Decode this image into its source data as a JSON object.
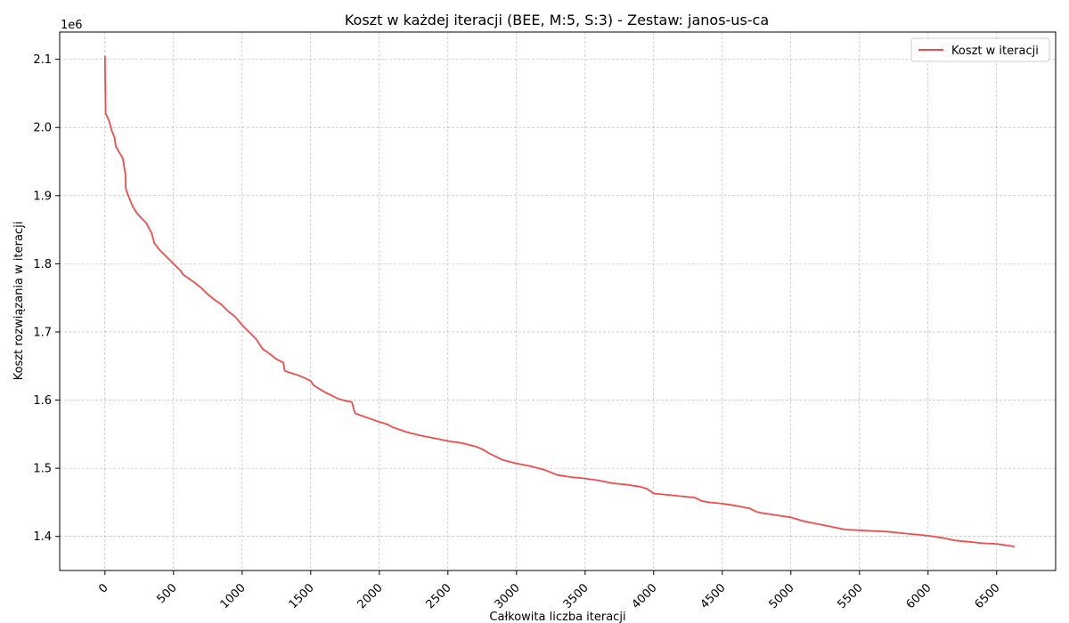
{
  "chart_data": {
    "type": "line",
    "title": "Koszt w każdej iteracji (BEE, M:5, S:3) - Zestaw: janos-us-ca",
    "xlabel": "Całkowita liczba iteracji",
    "ylabel": "Koszt rozwiązania w iteracji",
    "y_offset_label": "1e6",
    "xlim": [
      -330,
      6930
    ],
    "ylim": [
      1.35,
      2.14
    ],
    "xticks": [
      0,
      500,
      1000,
      1500,
      2000,
      2500,
      3000,
      3500,
      4000,
      4500,
      5000,
      5500,
      6000,
      6500
    ],
    "yticks": [
      1.4,
      1.5,
      1.6,
      1.7,
      1.8,
      1.9,
      2.0,
      2.1
    ],
    "ytick_labels": [
      "1.4",
      "1.5",
      "1.6",
      "1.7",
      "1.8",
      "1.9",
      "2.0",
      "2.1"
    ],
    "grid": true,
    "legend_position": "top-right",
    "series": [
      {
        "name": "Koszt w iteracji",
        "color": "#f04c4c",
        "x": [
          0,
          2,
          5,
          10,
          30,
          50,
          70,
          80,
          100,
          130,
          150,
          152,
          160,
          200,
          230,
          260,
          300,
          340,
          360,
          380,
          400,
          450,
          500,
          550,
          570,
          600,
          650,
          700,
          750,
          800,
          850,
          900,
          950,
          1000,
          1050,
          1100,
          1150,
          1200,
          1250,
          1300,
          1310,
          1350,
          1400,
          1450,
          1500,
          1520,
          1550,
          1600,
          1650,
          1700,
          1750,
          1800,
          1820,
          1830,
          1900,
          2000,
          2050,
          2100,
          2200,
          2300,
          2400,
          2500,
          2600,
          2700,
          2750,
          2800,
          2850,
          2900,
          3000,
          3100,
          3200,
          3250,
          3300,
          3400,
          3500,
          3600,
          3700,
          3800,
          3900,
          3950,
          4000,
          4100,
          4200,
          4300,
          4350,
          4400,
          4500,
          4600,
          4700,
          4750,
          4800,
          4900,
          5000,
          5050,
          5100,
          5200,
          5300,
          5400,
          5500,
          5600,
          5700,
          5800,
          5900,
          6000,
          6100,
          6150,
          6200,
          6300,
          6400,
          6500,
          6600,
          6630
        ],
        "y": [
          2.105,
          2.065,
          2.02,
          2.018,
          2.01,
          1.995,
          1.985,
          1.972,
          1.965,
          1.955,
          1.93,
          1.91,
          1.905,
          1.885,
          1.875,
          1.868,
          1.86,
          1.845,
          1.83,
          1.825,
          1.82,
          1.81,
          1.8,
          1.79,
          1.784,
          1.78,
          1.773,
          1.765,
          1.755,
          1.747,
          1.74,
          1.73,
          1.722,
          1.71,
          1.7,
          1.69,
          1.675,
          1.668,
          1.66,
          1.655,
          1.643,
          1.64,
          1.637,
          1.633,
          1.628,
          1.622,
          1.618,
          1.612,
          1.607,
          1.602,
          1.599,
          1.597,
          1.582,
          1.58,
          1.575,
          1.568,
          1.565,
          1.56,
          1.553,
          1.548,
          1.544,
          1.54,
          1.537,
          1.532,
          1.528,
          1.522,
          1.517,
          1.512,
          1.507,
          1.503,
          1.498,
          1.494,
          1.49,
          1.487,
          1.485,
          1.482,
          1.478,
          1.476,
          1.473,
          1.47,
          1.463,
          1.461,
          1.459,
          1.457,
          1.452,
          1.45,
          1.448,
          1.445,
          1.441,
          1.436,
          1.434,
          1.431,
          1.428,
          1.425,
          1.422,
          1.418,
          1.414,
          1.41,
          1.409,
          1.408,
          1.407,
          1.405,
          1.403,
          1.401,
          1.398,
          1.396,
          1.394,
          1.392,
          1.39,
          1.389,
          1.386,
          1.385
        ]
      }
    ]
  }
}
